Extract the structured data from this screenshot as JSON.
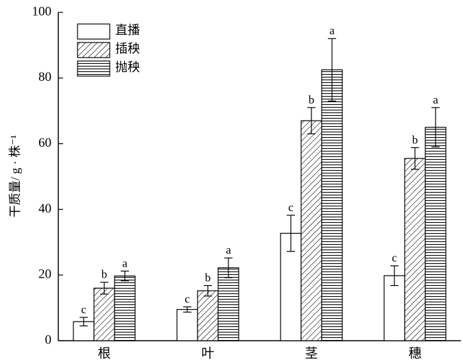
{
  "chart_data": {
    "type": "bar",
    "ylabel": "干质量/ g · 株⁻¹",
    "categories": [
      "根",
      "叶",
      "茎",
      "穗"
    ],
    "series": [
      {
        "name": "直播",
        "color": "#000000",
        "pattern": "none",
        "values": [
          5.8,
          9.5,
          32.7,
          19.8
        ],
        "errors": [
          1.3,
          0.8,
          5.5,
          3
        ],
        "letters": [
          "c",
          "c",
          "c",
          "c"
        ]
      },
      {
        "name": "插秧",
        "color": "#000000",
        "pattern": "diagonal",
        "values": [
          16,
          15.2,
          67,
          55.5
        ],
        "errors": [
          1.8,
          1.6,
          4,
          3.3
        ],
        "letters": [
          "b",
          "b",
          "b",
          "b"
        ]
      },
      {
        "name": "抛秧",
        "color": "#000000",
        "pattern": "horizontal",
        "values": [
          19.7,
          22.2,
          82.5,
          65
        ],
        "errors": [
          1.5,
          3,
          9.5,
          6
        ],
        "letters": [
          "a",
          "a",
          "a",
          "a"
        ]
      }
    ],
    "ylim": [
      0,
      100
    ],
    "yticks": [
      0,
      20,
      40,
      60,
      80,
      100
    ],
    "legend": "upper-left"
  }
}
